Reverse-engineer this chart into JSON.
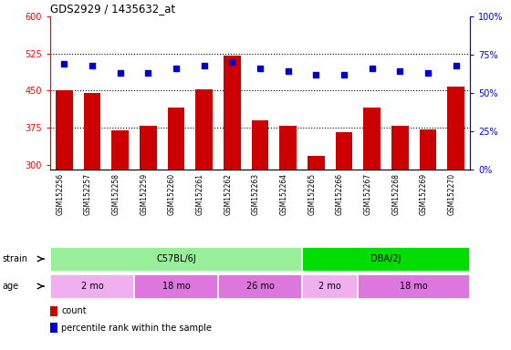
{
  "title": "GDS2929 / 1435632_at",
  "samples": [
    "GSM152256",
    "GSM152257",
    "GSM152258",
    "GSM152259",
    "GSM152260",
    "GSM152261",
    "GSM152262",
    "GSM152263",
    "GSM152264",
    "GSM152265",
    "GSM152266",
    "GSM152267",
    "GSM152268",
    "GSM152269",
    "GSM152270"
  ],
  "counts": [
    450,
    445,
    370,
    378,
    415,
    452,
    520,
    390,
    378,
    318,
    365,
    415,
    378,
    372,
    458
  ],
  "percentile_ranks": [
    69,
    68,
    63,
    63,
    66,
    68,
    70,
    66,
    64,
    62,
    62,
    66,
    64,
    63,
    68
  ],
  "ylim_left": [
    290,
    600
  ],
  "ylim_right": [
    0,
    100
  ],
  "yticks_left": [
    300,
    375,
    450,
    525,
    600
  ],
  "yticks_right": [
    0,
    25,
    50,
    75,
    100
  ],
  "bar_color": "#cc0000",
  "dot_color": "#0000cc",
  "tick_area_color": "#c8c8c8",
  "strain_groups": [
    {
      "label": "C57BL/6J",
      "start": 0,
      "end": 8,
      "color": "#99ee99"
    },
    {
      "label": "DBA/2J",
      "start": 9,
      "end": 14,
      "color": "#00dd00"
    }
  ],
  "age_groups": [
    {
      "label": "2 mo",
      "start": 0,
      "end": 2,
      "color": "#f0b0f0"
    },
    {
      "label": "18 mo",
      "start": 3,
      "end": 5,
      "color": "#dd77dd"
    },
    {
      "label": "26 mo",
      "start": 6,
      "end": 8,
      "color": "#dd77dd"
    },
    {
      "label": "2 mo",
      "start": 9,
      "end": 10,
      "color": "#f0b0f0"
    },
    {
      "label": "18 mo",
      "start": 11,
      "end": 14,
      "color": "#dd77dd"
    }
  ],
  "legend_count_label": "count",
  "legend_perc_label": "percentile rank within the sample",
  "hgrid_vals": [
    375,
    450,
    525
  ],
  "n_samples": 15
}
